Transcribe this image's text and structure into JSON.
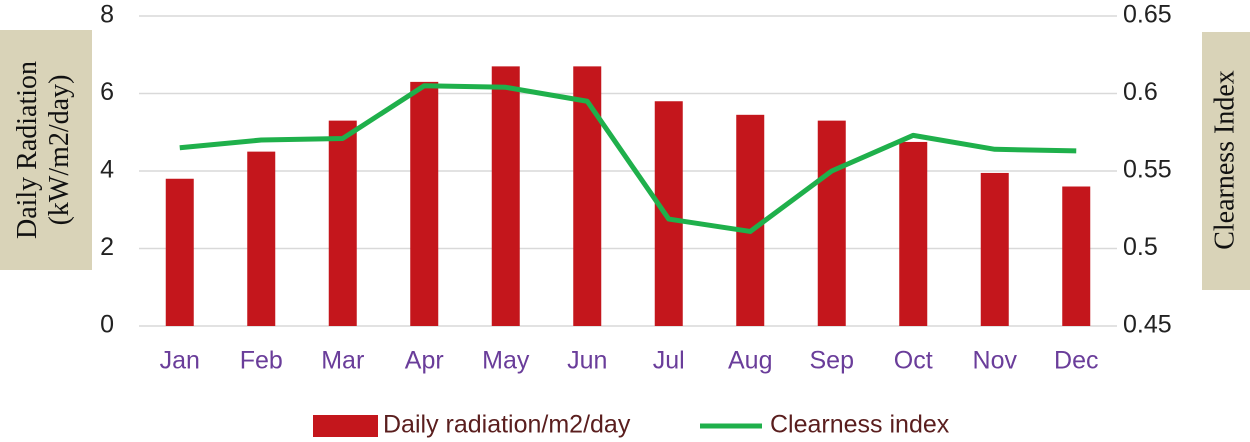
{
  "chart_data": {
    "type": "bar-line",
    "categories": [
      "Jan",
      "Feb",
      "Mar",
      "Apr",
      "May",
      "Jun",
      "Jul",
      "Aug",
      "Sep",
      "Oct",
      "Nov",
      "Dec"
    ],
    "series": [
      {
        "name": "Daily radiation/m2/day",
        "type": "bar",
        "color": "#c4161c",
        "axis": "y",
        "values": [
          3.8,
          4.5,
          5.3,
          6.3,
          6.7,
          6.7,
          5.8,
          5.45,
          5.3,
          4.75,
          3.95,
          3.6
        ]
      },
      {
        "name": "Clearness index",
        "type": "line",
        "color": "#1fb04b",
        "axis": "y2",
        "values": [
          0.565,
          0.57,
          0.571,
          0.605,
          0.604,
          0.595,
          0.519,
          0.511,
          0.55,
          0.573,
          0.564,
          0.563
        ]
      }
    ],
    "ylabel_lines": [
      "Daily Radiation",
      "(kW/m2/day)"
    ],
    "y2label": "Clearness Index",
    "ylim": [
      0,
      8
    ],
    "yticks": [
      0,
      2,
      4,
      6,
      8
    ],
    "y2lim": [
      0.45,
      0.65
    ],
    "y2ticks": [
      0.45,
      0.5,
      0.55,
      0.6,
      0.65
    ],
    "grid": true,
    "legend": "bottom"
  }
}
